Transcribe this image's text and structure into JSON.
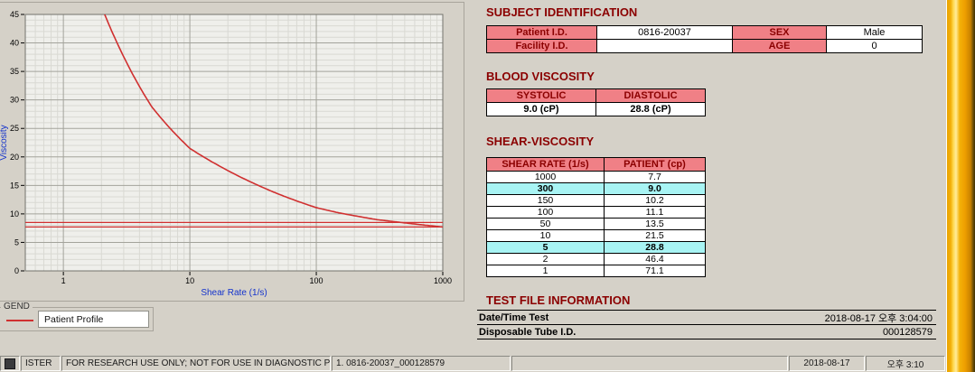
{
  "window": {
    "bg": "#d5d1c8"
  },
  "colors": {
    "title": "#8b0000",
    "header_bg": "#f08086",
    "highlight_bg": "#a8f4f4",
    "axis_label": "#1433cc",
    "curve": "#d03030"
  },
  "chart": {
    "legend_label": "GEND",
    "legend_item": "Patient Profile"
  },
  "chart_data": {
    "type": "line",
    "title": "",
    "xlabel": "Shear Rate (1/s)",
    "ylabel": "Viscosity",
    "xscale": "log",
    "xlim": [
      0.5,
      1000
    ],
    "ylim": [
      0,
      45
    ],
    "x_ticks": [
      "1",
      "10",
      "100",
      "1000"
    ],
    "y_ticks": [
      0,
      5,
      10,
      15,
      20,
      25,
      30,
      35,
      40,
      45
    ],
    "grid": true,
    "legend": {
      "position": "below-left",
      "items": [
        "Patient Profile"
      ]
    },
    "series": [
      {
        "name": "Patient Profile",
        "color": "#d03030",
        "x": [
          1,
          2,
          5,
          10,
          50,
          100,
          150,
          300,
          1000
        ],
        "y": [
          71.1,
          46.4,
          28.8,
          21.5,
          13.5,
          11.1,
          10.2,
          9.0,
          7.7
        ]
      }
    ],
    "reference_lines": {
      "color": "#d03030",
      "y": [
        7.7,
        8.5
      ]
    }
  },
  "subject": {
    "title": "SUBJECT IDENTIFICATION",
    "rows": [
      {
        "label1": "Patient I.D.",
        "value1": "0816-20037",
        "label2": "SEX",
        "value2": "Male"
      },
      {
        "label1": "Facility I.D.",
        "value1": "",
        "label2": "AGE",
        "value2": "0"
      }
    ]
  },
  "blood_viscosity": {
    "title": "BLOOD VISCOSITY",
    "headers": [
      "SYSTOLIC",
      "DIASTOLIC"
    ],
    "values": [
      "9.0 (cP)",
      "28.8 (cP)"
    ]
  },
  "shear_viscosity": {
    "title": "SHEAR-VISCOSITY",
    "headers": [
      "SHEAR RATE (1/s)",
      "PATIENT (cp)"
    ],
    "rows": [
      {
        "rate": "1000",
        "patient": "7.7",
        "highlight": false
      },
      {
        "rate": "300",
        "patient": "9.0",
        "highlight": true
      },
      {
        "rate": "150",
        "patient": "10.2",
        "highlight": false
      },
      {
        "rate": "100",
        "patient": "11.1",
        "highlight": false
      },
      {
        "rate": "50",
        "patient": "13.5",
        "highlight": false
      },
      {
        "rate": "10",
        "patient": "21.5",
        "highlight": false
      },
      {
        "rate": "5",
        "patient": "28.8",
        "highlight": true
      },
      {
        "rate": "2",
        "patient": "46.4",
        "highlight": false
      },
      {
        "rate": "1",
        "patient": "71.1",
        "highlight": false
      }
    ]
  },
  "test_file": {
    "title": "TEST FILE INFORMATION",
    "rows": [
      {
        "label": "Date/Time Test",
        "value": "2018-08-17  오후 3:04:00"
      },
      {
        "label": "Disposable Tube I.D.",
        "value": "000128579"
      }
    ]
  },
  "statusbar": {
    "partial_text": "ISTER",
    "notice": "FOR RESEARCH USE ONLY; NOT FOR USE IN DIAGNOSTIC PROCEDURES",
    "current_file": "1. 0816-20037_000128579",
    "date": "2018-08-17",
    "time": "오후 3:10"
  }
}
